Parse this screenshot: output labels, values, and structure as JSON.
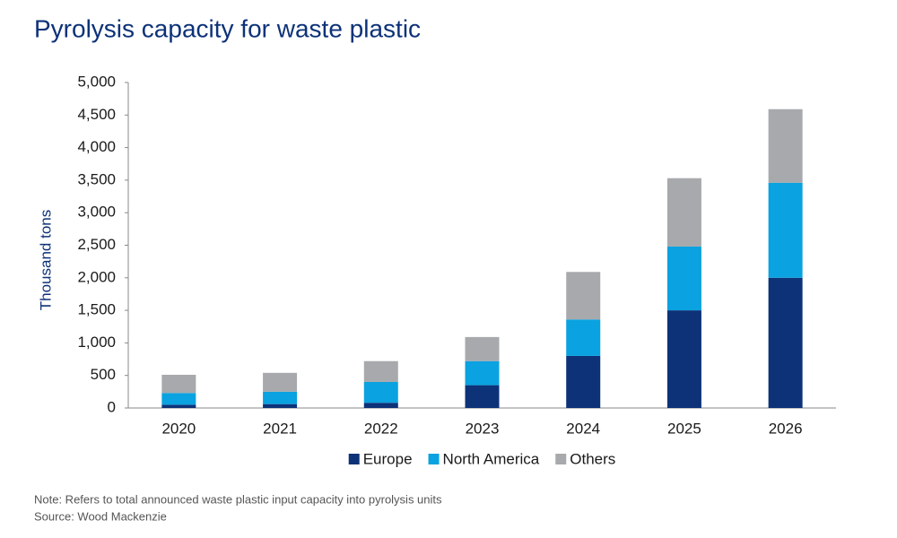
{
  "chart_data": {
    "type": "stacked_bar",
    "title": "Pyrolysis capacity for waste plastic",
    "y_label": "Thousand tons",
    "categories": [
      "2020",
      "2021",
      "2022",
      "2023",
      "2024",
      "2025",
      "2026"
    ],
    "series": [
      {
        "name": "Europe",
        "color": "#0d3278",
        "values": [
          50,
          60,
          80,
          350,
          800,
          1500,
          2000
        ]
      },
      {
        "name": "North America",
        "color": "#0aa2e0",
        "values": [
          180,
          190,
          320,
          370,
          560,
          980,
          1460
        ]
      },
      {
        "name": "Others",
        "color": "#a7a9ac",
        "values": [
          280,
          290,
          320,
          370,
          730,
          1050,
          1130
        ]
      }
    ],
    "ylim": [
      0,
      5000
    ],
    "yticks": [
      0,
      500,
      {
        "value": 1000,
        "label": "1,000"
      },
      {
        "value": 1500,
        "label": "1,500"
      },
      {
        "value": 2000,
        "label": "2,000"
      },
      {
        "value": 2500,
        "label": "2,500"
      },
      {
        "value": 3000,
        "label": "3,000"
      },
      {
        "value": 3500,
        "label": "3,500"
      },
      {
        "value": 4000,
        "label": "4,000"
      },
      {
        "value": 4500,
        "label": "4,500"
      },
      {
        "value": 5000,
        "label": "5,000"
      }
    ],
    "legend": "bottom",
    "notes": [
      "Note: Refers to total announced waste plastic input capacity into pyrolysis units",
      "Source: Wood Mackenzie"
    ]
  }
}
